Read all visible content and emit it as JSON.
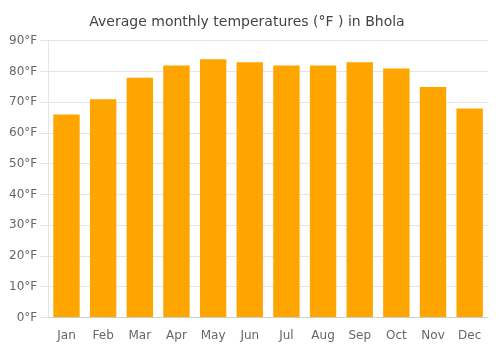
{
  "chart_data": {
    "type": "bar",
    "title": "Average monthly temperatures (°F ) in Bhola",
    "categories": [
      "Jan",
      "Feb",
      "Mar",
      "Apr",
      "May",
      "Jun",
      "Jul",
      "Aug",
      "Sep",
      "Oct",
      "Nov",
      "Dec"
    ],
    "values": [
      66,
      71,
      78,
      82,
      84,
      83,
      82,
      82,
      83,
      81,
      75,
      68
    ],
    "color": "#FFA500",
    "ylim": [
      0,
      90
    ],
    "yticks": [
      {
        "value": 0,
        "label": "0°F"
      },
      {
        "value": 10,
        "label": "10°F"
      },
      {
        "value": 20,
        "label": "20°F"
      },
      {
        "value": 30,
        "label": "30°F"
      },
      {
        "value": 40,
        "label": "40°F"
      },
      {
        "value": 50,
        "label": "50°F"
      },
      {
        "value": 60,
        "label": "60°F"
      },
      {
        "value": 70,
        "label": "70°F"
      },
      {
        "value": 80,
        "label": "80°F"
      },
      {
        "value": 90,
        "label": "90°F"
      }
    ],
    "grid": true
  }
}
